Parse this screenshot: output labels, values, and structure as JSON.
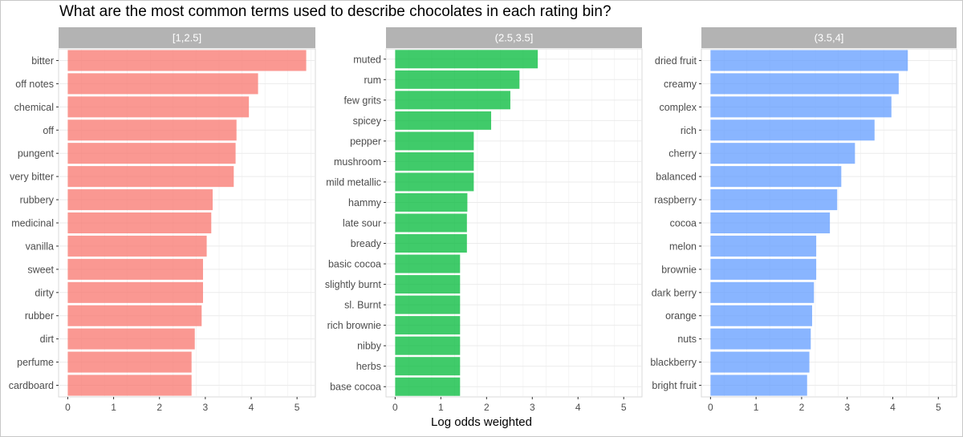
{
  "title": "What are the most common terms used to describe chocolates in each rating bin?",
  "chart_data": [
    {
      "type": "bar",
      "orientation": "horizontal",
      "facet": "[1,2.5]",
      "color": "#F8766D",
      "categories": [
        "bitter",
        "off notes",
        "chemical",
        "off",
        "pungent",
        "very bitter",
        "rubbery",
        "medicinal",
        "vanilla",
        "sweet",
        "dirty",
        "rubber",
        "dirt",
        "perfume",
        "cardboard"
      ],
      "values": [
        5.2,
        4.15,
        3.95,
        3.68,
        3.66,
        3.62,
        3.16,
        3.13,
        3.03,
        2.95,
        2.95,
        2.92,
        2.77,
        2.7,
        2.7
      ],
      "xlim": [
        -0.2,
        5.4
      ],
      "xticks": [
        0,
        1,
        2,
        3,
        4,
        5
      ]
    },
    {
      "type": "bar",
      "orientation": "horizontal",
      "facet": "(2.5,3.5]",
      "color": "#00BA38",
      "categories": [
        "muted",
        "rum",
        "few grits",
        "spicey",
        "pepper",
        "mushroom",
        "mild metallic",
        "hammy",
        "late sour",
        "bready",
        "basic cocoa",
        "slightly burnt",
        "sl. Burnt",
        "rich brownie",
        "nibby",
        "herbs",
        "base cocoa"
      ],
      "values": [
        3.12,
        2.72,
        2.52,
        2.1,
        1.72,
        1.72,
        1.72,
        1.58,
        1.57,
        1.57,
        1.42,
        1.42,
        1.42,
        1.42,
        1.42,
        1.42,
        1.42
      ],
      "xlim": [
        -0.2,
        5.4
      ],
      "xticks": [
        0,
        1,
        2,
        3,
        4,
        5
      ]
    },
    {
      "type": "bar",
      "orientation": "horizontal",
      "facet": "(3.5,4]",
      "color": "#619CFF",
      "categories": [
        "dried fruit",
        "creamy",
        "complex",
        "rich",
        "cherry",
        "balanced",
        "raspberry",
        "cocoa",
        "melon",
        "brownie",
        "dark berry",
        "orange",
        "nuts",
        "blackberry",
        "bright fruit"
      ],
      "values": [
        4.33,
        4.13,
        3.97,
        3.6,
        3.17,
        2.87,
        2.78,
        2.62,
        2.32,
        2.32,
        2.27,
        2.23,
        2.2,
        2.17,
        2.12
      ],
      "xlim": [
        -0.2,
        5.4
      ],
      "xticks": [
        0,
        1,
        2,
        3,
        4,
        5
      ]
    }
  ],
  "xlabel": "Log odds weighted"
}
